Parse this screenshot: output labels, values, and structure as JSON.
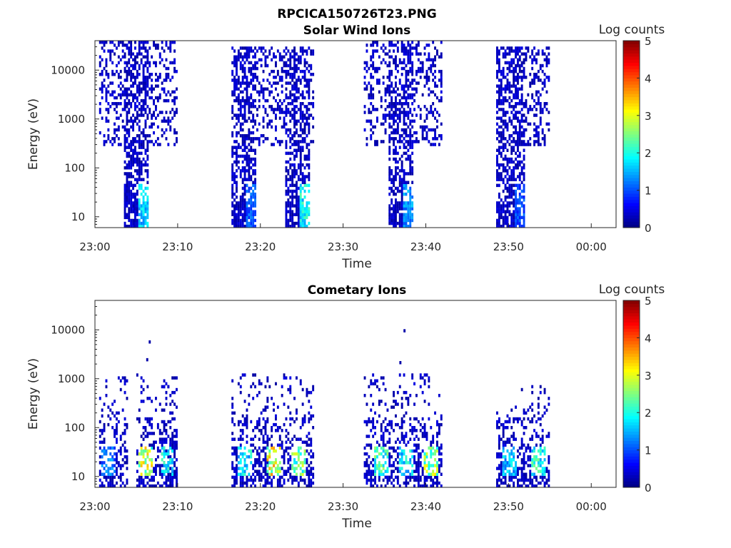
{
  "figure": {
    "title": "RPCICA150726T23.PNG"
  },
  "chart_data": [
    {
      "type": "heatmap",
      "title": "Solar Wind Ions",
      "xlabel": "Time",
      "ylabel": "Energy (eV)",
      "x_ticks": [
        "23:00",
        "23:10",
        "23:20",
        "23:30",
        "23:40",
        "23:50",
        "00:00"
      ],
      "x_range_minutes": [
        0,
        63
      ],
      "y_ticks": [
        "10",
        "100",
        "1000",
        "10000"
      ],
      "y_scale": "log",
      "y_range": [
        6,
        40000
      ],
      "colorbar": {
        "label": "Log counts",
        "ticks": [
          "0",
          "1",
          "2",
          "3",
          "4",
          "5"
        ],
        "range": [
          0,
          5
        ],
        "colormap": "jet"
      },
      "bursts": [
        {
          "start_min": 0.5,
          "end_min": 10,
          "core_start_min": 3.5,
          "core_end_min": 6.5,
          "top_eV": 35000,
          "max_log": 2.0
        },
        {
          "start_min": 16.5,
          "end_min": 22,
          "core_start_min": 16.5,
          "core_end_min": 19.5,
          "top_eV": 30000,
          "max_log": 1.3
        },
        {
          "start_min": 22,
          "end_min": 26.5,
          "core_start_min": 23,
          "core_end_min": 26,
          "top_eV": 30000,
          "max_log": 2.3
        },
        {
          "start_min": 32.5,
          "end_min": 42,
          "core_start_min": 35.5,
          "core_end_min": 38.5,
          "top_eV": 35000,
          "max_log": 1.7
        },
        {
          "start_min": 48.5,
          "end_min": 55,
          "core_start_min": 48.5,
          "core_end_min": 52,
          "top_eV": 30000,
          "max_log": 1.2
        }
      ]
    },
    {
      "type": "heatmap",
      "title": "Cometary Ions",
      "xlabel": "Time",
      "ylabel": "Energy (eV)",
      "x_ticks": [
        "23:00",
        "23:10",
        "23:20",
        "23:30",
        "23:40",
        "23:50",
        "00:00"
      ],
      "x_range_minutes": [
        0,
        63
      ],
      "y_ticks": [
        "10",
        "100",
        "1000",
        "10000"
      ],
      "y_scale": "log",
      "y_range": [
        6,
        40000
      ],
      "colorbar": {
        "label": "Log counts",
        "ticks": [
          "0",
          "1",
          "2",
          "3",
          "4",
          "5"
        ],
        "range": [
          0,
          5
        ],
        "colormap": "jet"
      },
      "bursts": [
        {
          "start_min": 0.5,
          "end_min": 4,
          "top_eV": 1000,
          "hot_min": 1.5,
          "hot_log": 1.5
        },
        {
          "start_min": 5,
          "end_min": 10,
          "top_eV": 1200,
          "hot_min": 6,
          "hot_log": 3.5
        },
        {
          "start_min": 8,
          "end_min": 10,
          "top_eV": 1200,
          "hot_min": 8.5,
          "hot_log": 2.3
        },
        {
          "start_min": 16.5,
          "end_min": 21,
          "top_eV": 1200,
          "hot_min": 18,
          "hot_log": 2.2
        },
        {
          "start_min": 20.5,
          "end_min": 23.5,
          "top_eV": 1200,
          "hot_min": 21.5,
          "hot_log": 3.7
        },
        {
          "start_min": 23.5,
          "end_min": 26.5,
          "top_eV": 1000,
          "hot_min": 24.5,
          "hot_log": 3.0
        },
        {
          "start_min": 32.5,
          "end_min": 36,
          "top_eV": 1200,
          "hot_min": 34.5,
          "hot_log": 2.7
        },
        {
          "start_min": 36,
          "end_min": 38.5,
          "top_eV": 1200,
          "hot_min": 37.5,
          "hot_log": 2.2
        },
        {
          "start_min": 38.5,
          "end_min": 42,
          "top_eV": 1200,
          "hot_min": 40.5,
          "hot_log": 3.3
        },
        {
          "start_min": 48.5,
          "end_min": 51.5,
          "top_eV": 300,
          "hot_min": 50,
          "hot_log": 2.0
        },
        {
          "start_min": 51.5,
          "end_min": 55,
          "top_eV": 700,
          "hot_min": 53.5,
          "hot_log": 2.5
        }
      ],
      "outliers": [
        {
          "min": 6.5,
          "eV": 5300
        },
        {
          "min": 6.2,
          "eV": 2300
        },
        {
          "min": 37.3,
          "eV": 9000
        },
        {
          "min": 36.8,
          "eV": 2000
        }
      ]
    }
  ]
}
